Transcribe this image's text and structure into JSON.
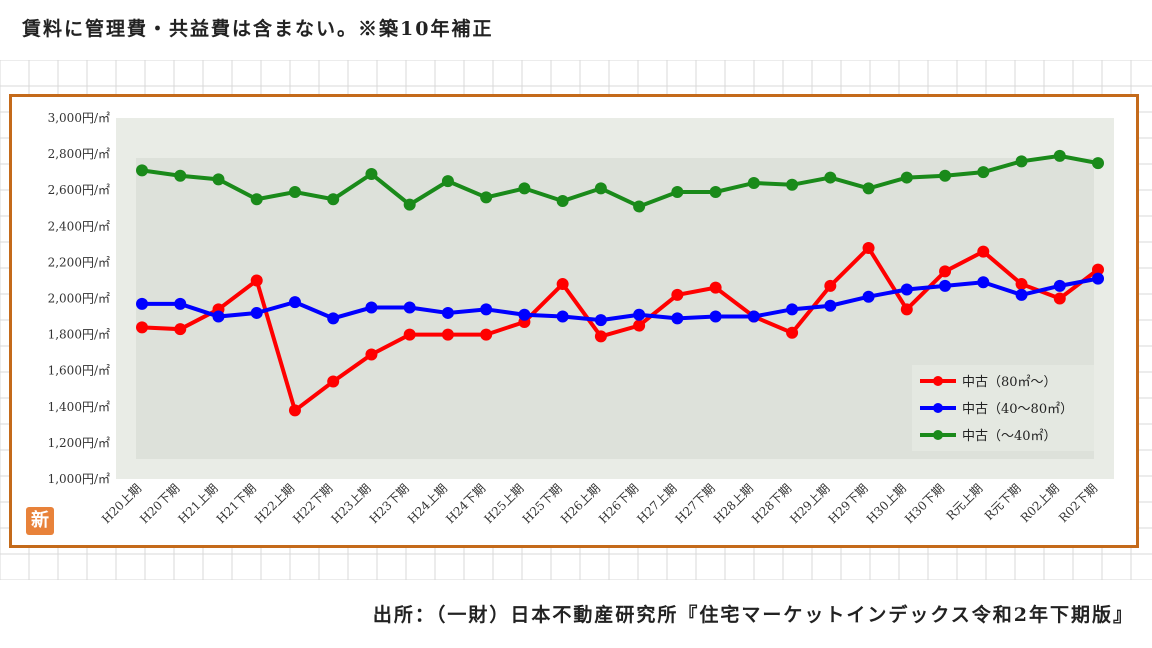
{
  "note": "賃料に管理費・共益費は含まない。※築10年補正",
  "source": "出所：（一財）日本不動産研究所『住宅マーケットインデックス令和2年下期版』",
  "badge": "新",
  "chart_data": {
    "type": "line",
    "title": "",
    "xlabel": "",
    "ylabel": "",
    "ylim": [
      1000,
      3000
    ],
    "yticks": [
      1000,
      1200,
      1400,
      1600,
      1800,
      2000,
      2200,
      2400,
      2600,
      2800,
      3000
    ],
    "ytick_labels": [
      "1,000円/㎡",
      "1,200円/㎡",
      "1,400円/㎡",
      "1,600円/㎡",
      "1,800円/㎡",
      "2,000円/㎡",
      "2,200円/㎡",
      "2,400円/㎡",
      "2,600円/㎡",
      "2,800円/㎡",
      "3,000円/㎡"
    ],
    "categories": [
      "H20上期",
      "H20下期",
      "H21上期",
      "H21下期",
      "H22上期",
      "H22下期",
      "H23上期",
      "H23下期",
      "H24上期",
      "H24下期",
      "H25上期",
      "H25下期",
      "H26上期",
      "H26下期",
      "H27上期",
      "H27下期",
      "H28上期",
      "H28下期",
      "H29上期",
      "H29下期",
      "H30上期",
      "H30下期",
      "R元上期",
      "R元下期",
      "R02上期",
      "R02下期"
    ],
    "legend_position": "bottom-right",
    "series": [
      {
        "name": "中古（80㎡～）",
        "color": "#ff0000",
        "values": [
          1840,
          1830,
          1940,
          2100,
          1380,
          1540,
          1690,
          1800,
          1800,
          1800,
          1870,
          2080,
          1790,
          1850,
          2020,
          2060,
          1900,
          1810,
          2070,
          2280,
          1940,
          2150,
          2260,
          2080,
          2000,
          2160
        ]
      },
      {
        "name": "中古（40～80㎡）",
        "color": "#0000ff",
        "values": [
          1970,
          1970,
          1900,
          1920,
          1980,
          1890,
          1950,
          1950,
          1920,
          1940,
          1910,
          1900,
          1880,
          1910,
          1890,
          1900,
          1900,
          1940,
          1960,
          2010,
          2050,
          2070,
          2090,
          2020,
          2070,
          2110
        ]
      },
      {
        "name": "中古（～40㎡）",
        "color": "#1a8a1a",
        "values": [
          2710,
          2680,
          2660,
          2550,
          2590,
          2550,
          2690,
          2520,
          2650,
          2560,
          2610,
          2540,
          2610,
          2510,
          2590,
          2590,
          2640,
          2630,
          2670,
          2610,
          2670,
          2680,
          2700,
          2760,
          2790,
          2750
        ]
      }
    ]
  }
}
